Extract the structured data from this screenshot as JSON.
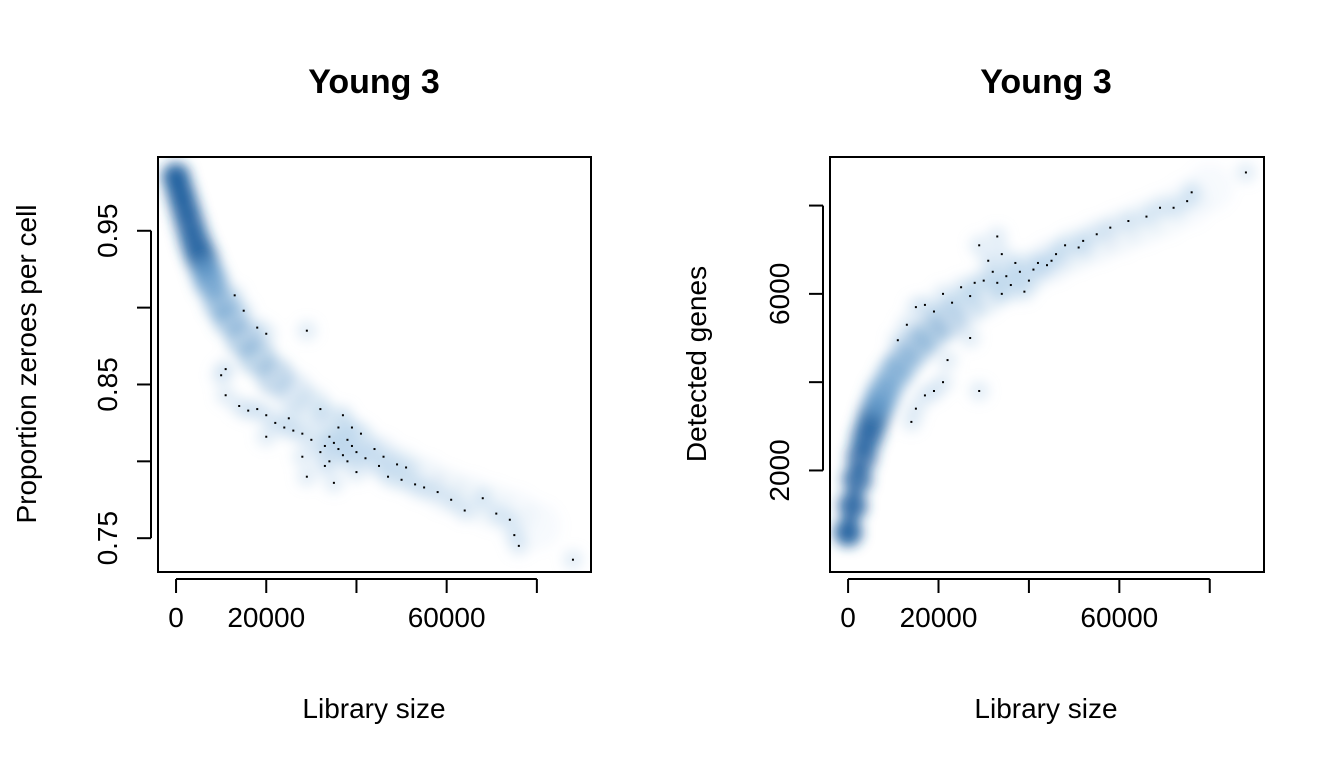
{
  "chart_data": [
    {
      "type": "scatter",
      "style": "smoothScatter",
      "title": "Young 3",
      "xlabel": "Library size",
      "ylabel": "Proportion zeroes per cell",
      "xlim": [
        -4000,
        92000
      ],
      "ylim": [
        0.728,
        0.998
      ],
      "xticks": [
        0,
        20000,
        40000,
        60000,
        80000
      ],
      "xtick_labels": [
        "0",
        "20000",
        "",
        "60000",
        ""
      ],
      "yticks": [
        0.75,
        0.8,
        0.85,
        0.9,
        0.95
      ],
      "ytick_labels": [
        "0.75",
        "",
        "0.85",
        "",
        "0.95"
      ],
      "grid": false,
      "density": [
        {
          "x": 0,
          "y": 0.985
        },
        {
          "x": 1000,
          "y": 0.975
        },
        {
          "x": 2000,
          "y": 0.965
        },
        {
          "x": 3000,
          "y": 0.955
        },
        {
          "x": 4000,
          "y": 0.945
        },
        {
          "x": 5000,
          "y": 0.937
        },
        {
          "x": 6000,
          "y": 0.93
        },
        {
          "x": 7000,
          "y": 0.922
        },
        {
          "x": 8000,
          "y": 0.915
        },
        {
          "x": 10000,
          "y": 0.903
        },
        {
          "x": 12000,
          "y": 0.893
        },
        {
          "x": 15000,
          "y": 0.88
        },
        {
          "x": 18000,
          "y": 0.868
        },
        {
          "x": 22000,
          "y": 0.855
        },
        {
          "x": 26000,
          "y": 0.845
        },
        {
          "x": 30000,
          "y": 0.835
        },
        {
          "x": 35000,
          "y": 0.823
        },
        {
          "x": 40000,
          "y": 0.812
        },
        {
          "x": 45000,
          "y": 0.803
        },
        {
          "x": 50000,
          "y": 0.795
        },
        {
          "x": 55000,
          "y": 0.788
        },
        {
          "x": 60000,
          "y": 0.781
        },
        {
          "x": 65000,
          "y": 0.776
        },
        {
          "x": 70000,
          "y": 0.771
        },
        {
          "x": 75000,
          "y": 0.766
        },
        {
          "x": 80000,
          "y": 0.758
        }
      ],
      "points": [
        {
          "x": 13000,
          "y": 0.908
        },
        {
          "x": 15000,
          "y": 0.898
        },
        {
          "x": 18000,
          "y": 0.887
        },
        {
          "x": 20000,
          "y": 0.883
        },
        {
          "x": 29000,
          "y": 0.885
        },
        {
          "x": 10000,
          "y": 0.856
        },
        {
          "x": 11000,
          "y": 0.86
        },
        {
          "x": 11000,
          "y": 0.843
        },
        {
          "x": 14000,
          "y": 0.836
        },
        {
          "x": 16000,
          "y": 0.833
        },
        {
          "x": 18000,
          "y": 0.834
        },
        {
          "x": 20000,
          "y": 0.83
        },
        {
          "x": 20000,
          "y": 0.816
        },
        {
          "x": 22000,
          "y": 0.825
        },
        {
          "x": 24000,
          "y": 0.822
        },
        {
          "x": 25000,
          "y": 0.828
        },
        {
          "x": 26000,
          "y": 0.82
        },
        {
          "x": 28000,
          "y": 0.818
        },
        {
          "x": 30000,
          "y": 0.814
        },
        {
          "x": 32000,
          "y": 0.834
        },
        {
          "x": 32000,
          "y": 0.806
        },
        {
          "x": 33000,
          "y": 0.81
        },
        {
          "x": 33000,
          "y": 0.797
        },
        {
          "x": 34000,
          "y": 0.816
        },
        {
          "x": 34000,
          "y": 0.8
        },
        {
          "x": 35000,
          "y": 0.812
        },
        {
          "x": 35000,
          "y": 0.786
        },
        {
          "x": 36000,
          "y": 0.822
        },
        {
          "x": 36000,
          "y": 0.808
        },
        {
          "x": 37000,
          "y": 0.804
        },
        {
          "x": 37000,
          "y": 0.83
        },
        {
          "x": 38000,
          "y": 0.814
        },
        {
          "x": 38000,
          "y": 0.8
        },
        {
          "x": 39000,
          "y": 0.822
        },
        {
          "x": 39000,
          "y": 0.81
        },
        {
          "x": 40000,
          "y": 0.806
        },
        {
          "x": 40000,
          "y": 0.793
        },
        {
          "x": 41000,
          "y": 0.818
        },
        {
          "x": 42000,
          "y": 0.802
        },
        {
          "x": 44000,
          "y": 0.808
        },
        {
          "x": 45000,
          "y": 0.797
        },
        {
          "x": 46000,
          "y": 0.803
        },
        {
          "x": 47000,
          "y": 0.79
        },
        {
          "x": 49000,
          "y": 0.798
        },
        {
          "x": 50000,
          "y": 0.788
        },
        {
          "x": 51000,
          "y": 0.796
        },
        {
          "x": 53000,
          "y": 0.785
        },
        {
          "x": 55000,
          "y": 0.783
        },
        {
          "x": 58000,
          "y": 0.78
        },
        {
          "x": 61000,
          "y": 0.775
        },
        {
          "x": 64000,
          "y": 0.768
        },
        {
          "x": 68000,
          "y": 0.776
        },
        {
          "x": 71000,
          "y": 0.766
        },
        {
          "x": 74000,
          "y": 0.762
        },
        {
          "x": 75000,
          "y": 0.752
        },
        {
          "x": 76000,
          "y": 0.745
        },
        {
          "x": 88000,
          "y": 0.736
        },
        {
          "x": 29000,
          "y": 0.79
        },
        {
          "x": 28000,
          "y": 0.803
        }
      ]
    },
    {
      "type": "scatter",
      "style": "smoothScatter",
      "title": "Young 3",
      "xlabel": "Library size",
      "ylabel": "Detected genes",
      "xlim": [
        -4000,
        92000
      ],
      "ylim": [
        -300,
        9100
      ],
      "xticks": [
        0,
        20000,
        40000,
        60000,
        80000
      ],
      "xtick_labels": [
        "0",
        "20000",
        "",
        "60000",
        ""
      ],
      "yticks": [
        2000,
        4000,
        6000,
        8000
      ],
      "ytick_labels": [
        "2000",
        "",
        "6000",
        ""
      ],
      "grid": false,
      "density": [
        {
          "x": 0,
          "y": 600
        },
        {
          "x": 1000,
          "y": 1200
        },
        {
          "x": 2000,
          "y": 1800
        },
        {
          "x": 3000,
          "y": 2300
        },
        {
          "x": 4000,
          "y": 2700
        },
        {
          "x": 5000,
          "y": 3000
        },
        {
          "x": 6000,
          "y": 3300
        },
        {
          "x": 7000,
          "y": 3550
        },
        {
          "x": 8000,
          "y": 3800
        },
        {
          "x": 10000,
          "y": 4150
        },
        {
          "x": 12000,
          "y": 4450
        },
        {
          "x": 15000,
          "y": 4800
        },
        {
          "x": 18000,
          "y": 5100
        },
        {
          "x": 22000,
          "y": 5400
        },
        {
          "x": 26000,
          "y": 5700
        },
        {
          "x": 30000,
          "y": 5950
        },
        {
          "x": 35000,
          "y": 6250
        },
        {
          "x": 40000,
          "y": 6500
        },
        {
          "x": 45000,
          "y": 6750
        },
        {
          "x": 50000,
          "y": 7000
        },
        {
          "x": 55000,
          "y": 7200
        },
        {
          "x": 60000,
          "y": 7400
        },
        {
          "x": 65000,
          "y": 7600
        },
        {
          "x": 70000,
          "y": 7800
        },
        {
          "x": 75000,
          "y": 8050
        },
        {
          "x": 80000,
          "y": 8400
        }
      ],
      "points": [
        {
          "x": 88000,
          "y": 8750
        },
        {
          "x": 76000,
          "y": 8300
        },
        {
          "x": 75000,
          "y": 8100
        },
        {
          "x": 72000,
          "y": 7950
        },
        {
          "x": 69000,
          "y": 7950
        },
        {
          "x": 66000,
          "y": 7750
        },
        {
          "x": 62000,
          "y": 7650
        },
        {
          "x": 58000,
          "y": 7500
        },
        {
          "x": 55000,
          "y": 7350
        },
        {
          "x": 52000,
          "y": 7200
        },
        {
          "x": 51000,
          "y": 7050
        },
        {
          "x": 48000,
          "y": 7100
        },
        {
          "x": 46000,
          "y": 6900
        },
        {
          "x": 45000,
          "y": 6750
        },
        {
          "x": 44000,
          "y": 6650
        },
        {
          "x": 42000,
          "y": 6700
        },
        {
          "x": 41000,
          "y": 6550
        },
        {
          "x": 40000,
          "y": 6300
        },
        {
          "x": 39000,
          "y": 6050
        },
        {
          "x": 38000,
          "y": 6500
        },
        {
          "x": 37000,
          "y": 6700
        },
        {
          "x": 36000,
          "y": 6200
        },
        {
          "x": 35000,
          "y": 6400
        },
        {
          "x": 34000,
          "y": 6900
        },
        {
          "x": 34000,
          "y": 6000
        },
        {
          "x": 33000,
          "y": 6250
        },
        {
          "x": 33000,
          "y": 7300
        },
        {
          "x": 32000,
          "y": 6500
        },
        {
          "x": 31000,
          "y": 6750
        },
        {
          "x": 30000,
          "y": 6300
        },
        {
          "x": 29000,
          "y": 7100
        },
        {
          "x": 28000,
          "y": 6250
        },
        {
          "x": 27000,
          "y": 5950
        },
        {
          "x": 25000,
          "y": 6150
        },
        {
          "x": 23000,
          "y": 5800
        },
        {
          "x": 21000,
          "y": 6000
        },
        {
          "x": 19000,
          "y": 5600
        },
        {
          "x": 17000,
          "y": 5750
        },
        {
          "x": 15000,
          "y": 5700
        },
        {
          "x": 13000,
          "y": 5300
        },
        {
          "x": 11000,
          "y": 4950
        },
        {
          "x": 22000,
          "y": 4500
        },
        {
          "x": 21000,
          "y": 4000
        },
        {
          "x": 19000,
          "y": 3800
        },
        {
          "x": 17000,
          "y": 3700
        },
        {
          "x": 15000,
          "y": 3400
        },
        {
          "x": 14000,
          "y": 3100
        },
        {
          "x": 29000,
          "y": 3800
        },
        {
          "x": 27000,
          "y": 5000
        }
      ]
    }
  ]
}
